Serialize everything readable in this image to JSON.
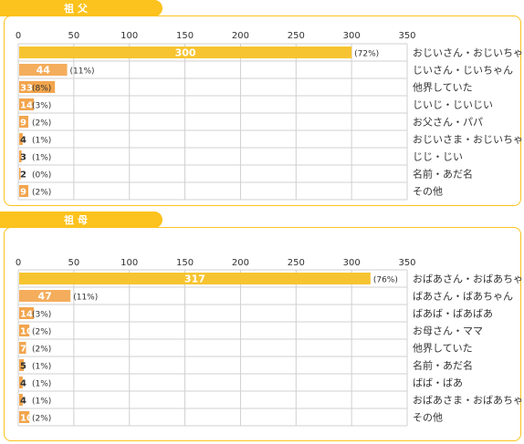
{
  "chart_data": [
    {
      "type": "bar",
      "title": "祖父",
      "xlim": [
        0,
        350
      ],
      "ticks": [
        "0",
        "50",
        "100",
        "150",
        "200",
        "250",
        "300",
        "350"
      ],
      "categories": [
        "おじいさん・おじいちゃん",
        "じいさん・じいちゃん",
        "他界していた",
        "じいじ・じいじい",
        "お父さん・パパ",
        "おじいさま・おじいちゃま",
        "じじ・じい",
        "名前・あだ名",
        "その他"
      ],
      "values": [
        300,
        44,
        33,
        14,
        9,
        4,
        3,
        2,
        9
      ],
      "percents": [
        "(72%)",
        "(11%)",
        "(8%)",
        "(3%)",
        "(2%)",
        "(1%)",
        "(1%)",
        "(0%)",
        "(2%)"
      ]
    },
    {
      "type": "bar",
      "title": "祖母",
      "xlim": [
        0,
        350
      ],
      "ticks": [
        "0",
        "50",
        "100",
        "150",
        "200",
        "250",
        "300",
        "350"
      ],
      "categories": [
        "おばあさん・おばあちゃん",
        "ばあさん・ばあちゃん",
        "ばあば・ばあばあ",
        "お母さん・ママ",
        "他界していた",
        "名前・あだ名",
        "ばば・ばあ",
        "おばあさま・おばあちゃま",
        "その他"
      ],
      "values": [
        317,
        47,
        14,
        10,
        7,
        5,
        4,
        4,
        10
      ],
      "percents": [
        "(76%)",
        "(11%)",
        "(3%)",
        "(2%)",
        "(2%)",
        "(1%)",
        "(1%)",
        "(1%)",
        "(2%)"
      ]
    }
  ],
  "colors": {
    "accent": "#fcc21d",
    "bar_top": "#f6c431",
    "bar_second": "#f4ad5c",
    "bar_rest": "#f2a54d",
    "grid": "#d0d0d0",
    "text": "#333333"
  }
}
